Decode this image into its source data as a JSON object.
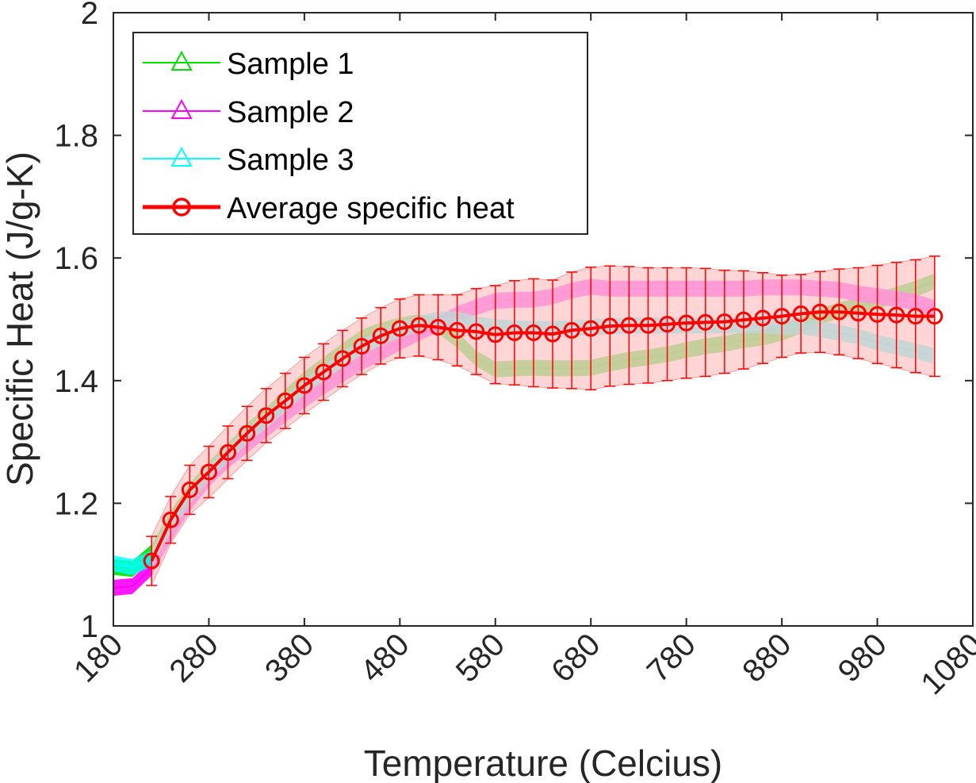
{
  "chart_data": {
    "type": "line",
    "xlabel": "Temperature (Celcius)",
    "ylabel": "Specific Heat (J/g-K)",
    "xlim": [
      180,
      1080
    ],
    "ylim": [
      1,
      2
    ],
    "xticks": [
      180,
      280,
      380,
      480,
      580,
      680,
      780,
      880,
      980,
      1080
    ],
    "yticks": [
      1,
      1.2,
      1.4,
      1.6,
      1.8,
      2
    ],
    "ytick_labels": [
      "1",
      "1.2",
      "1.4",
      "1.6",
      "1.8",
      "2"
    ],
    "xtick_rotation": "45 degrees",
    "grid": false,
    "legend_position": "top-left",
    "series": [
      {
        "name": "Sample 1",
        "color": "#00E000",
        "marker": "triangle",
        "band_width": 0.026,
        "x": [
          180,
          200,
          220,
          240,
          260,
          280,
          300,
          320,
          340,
          360,
          380,
          400,
          420,
          440,
          460,
          480,
          500,
          520,
          540,
          560,
          580,
          600,
          620,
          640,
          660,
          680,
          700,
          720,
          740,
          760,
          780,
          800,
          820,
          840,
          860,
          880,
          900,
          920,
          940,
          960,
          980,
          1000,
          1020,
          1040
        ],
        "y": [
          1.096,
          1.093,
          1.12,
          1.175,
          1.22,
          1.255,
          1.285,
          1.318,
          1.343,
          1.373,
          1.402,
          1.425,
          1.448,
          1.47,
          1.482,
          1.49,
          1.495,
          1.49,
          1.466,
          1.436,
          1.418,
          1.42,
          1.421,
          1.42,
          1.42,
          1.421,
          1.428,
          1.434,
          1.438,
          1.443,
          1.45,
          1.456,
          1.46,
          1.466,
          1.47,
          1.478,
          1.49,
          1.505,
          1.515,
          1.522,
          1.53,
          1.54,
          1.55,
          1.562
        ]
      },
      {
        "name": "Sample 2",
        "color": "#FF00FF",
        "marker": "triangle",
        "band_width": 0.026,
        "x": [
          180,
          200,
          220,
          240,
          260,
          280,
          300,
          320,
          340,
          360,
          380,
          400,
          420,
          440,
          460,
          480,
          500,
          520,
          540,
          560,
          580,
          600,
          620,
          640,
          660,
          680,
          700,
          720,
          740,
          760,
          780,
          800,
          820,
          840,
          860,
          880,
          900,
          920,
          940,
          960,
          980,
          1000,
          1020,
          1040
        ],
        "y": [
          1.062,
          1.065,
          1.095,
          1.15,
          1.2,
          1.24,
          1.27,
          1.295,
          1.32,
          1.345,
          1.368,
          1.39,
          1.41,
          1.43,
          1.445,
          1.462,
          1.478,
          1.492,
          1.508,
          1.52,
          1.53,
          1.532,
          1.532,
          1.537,
          1.547,
          1.553,
          1.55,
          1.55,
          1.55,
          1.55,
          1.55,
          1.55,
          1.55,
          1.55,
          1.552,
          1.552,
          1.552,
          1.55,
          1.548,
          1.542,
          1.538,
          1.533,
          1.528,
          1.518
        ]
      },
      {
        "name": "Sample 3",
        "color": "#00FFFF",
        "marker": "triangle",
        "band_width": 0.026,
        "x": [
          180,
          200,
          220,
          240,
          260,
          280,
          300,
          320,
          340,
          360,
          380,
          400,
          420,
          440,
          460,
          480,
          500,
          520,
          540,
          560,
          580,
          600,
          620,
          640,
          660,
          680,
          700,
          720,
          740,
          760,
          780,
          800,
          820,
          840,
          860,
          880,
          900,
          920,
          940,
          960,
          980,
          1000,
          1020,
          1040
        ],
        "y": [
          1.102,
          1.096,
          1.11,
          1.165,
          1.212,
          1.25,
          1.28,
          1.31,
          1.335,
          1.362,
          1.39,
          1.412,
          1.435,
          1.455,
          1.47,
          1.483,
          1.492,
          1.5,
          1.5,
          1.492,
          1.487,
          1.485,
          1.484,
          1.484,
          1.485,
          1.487,
          1.488,
          1.49,
          1.49,
          1.49,
          1.49,
          1.49,
          1.49,
          1.49,
          1.49,
          1.488,
          1.488,
          1.484,
          1.478,
          1.472,
          1.462,
          1.455,
          1.448,
          1.44
        ]
      },
      {
        "name": "Average specific heat",
        "color": "#FF0000",
        "marker": "circle",
        "x": [
          220,
          240,
          260,
          280,
          300,
          320,
          340,
          360,
          380,
          400,
          420,
          440,
          460,
          480,
          500,
          520,
          540,
          560,
          580,
          600,
          620,
          640,
          660,
          680,
          700,
          720,
          740,
          760,
          780,
          800,
          820,
          840,
          860,
          880,
          900,
          920,
          940,
          960,
          980,
          1000,
          1020,
          1040
        ],
        "y": [
          1.106,
          1.173,
          1.222,
          1.251,
          1.283,
          1.314,
          1.343,
          1.367,
          1.392,
          1.414,
          1.436,
          1.456,
          1.473,
          1.485,
          1.49,
          1.487,
          1.482,
          1.48,
          1.475,
          1.478,
          1.478,
          1.476,
          1.482,
          1.485,
          1.489,
          1.49,
          1.49,
          1.492,
          1.494,
          1.495,
          1.496,
          1.499,
          1.502,
          1.505,
          1.509,
          1.512,
          1.512,
          1.51,
          1.508,
          1.507,
          1.505,
          1.505
        ],
        "error": [
          0.04,
          0.038,
          0.04,
          0.042,
          0.043,
          0.044,
          0.044,
          0.045,
          0.046,
          0.046,
          0.046,
          0.046,
          0.046,
          0.048,
          0.05,
          0.053,
          0.058,
          0.07,
          0.08,
          0.085,
          0.088,
          0.088,
          0.095,
          0.1,
          0.098,
          0.096,
          0.094,
          0.092,
          0.09,
          0.088,
          0.084,
          0.08,
          0.074,
          0.067,
          0.064,
          0.066,
          0.07,
          0.074,
          0.08,
          0.086,
          0.092,
          0.098
        ],
        "band_color": "#FFC8C8"
      }
    ]
  }
}
